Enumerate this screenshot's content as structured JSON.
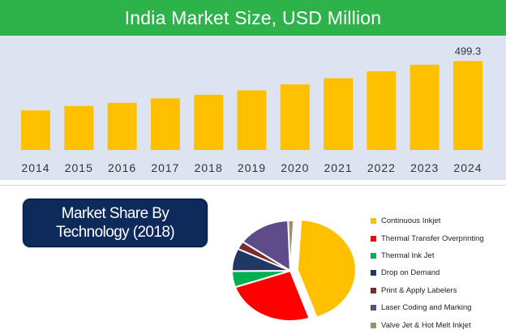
{
  "header": {
    "title": "India Market Size, USD Million"
  },
  "chart_data": [
    {
      "type": "bar",
      "title": "India Market Size, USD Million",
      "categories": [
        "2014",
        "2015",
        "2016",
        "2017",
        "2018",
        "2019",
        "2020",
        "2021",
        "2022",
        "2023",
        "2024"
      ],
      "values": [
        222,
        247,
        265,
        290,
        310,
        335,
        368,
        403,
        442,
        479,
        499.3
      ],
      "data_labels": {
        "2024": "499.3"
      },
      "color": "#ffc000",
      "ylim": [
        0,
        560
      ],
      "grid": false
    },
    {
      "type": "pie",
      "title": "Market Share By Technology (2018)",
      "title_lines": [
        "Market Share By",
        "Technology (2018)"
      ],
      "labels": [
        "Continuous Inkjet",
        "Thermal Transfer Overprinting",
        "Thermal Ink Jet",
        "Drop on Demand",
        "Print & Apply Labelers",
        "Laser Coding and Marking",
        "Valve Jet & Hot Melt Inkjet"
      ],
      "values": [
        42,
        24,
        5,
        7,
        2.5,
        14,
        1.5
      ],
      "colors": [
        "#ffc000",
        "#ff0000",
        "#00b050",
        "#1f3864",
        "#7b2c2c",
        "#5e4c8a",
        "#9c8f6a"
      ],
      "legend_position": "right",
      "exploded_slice": "Continuous Inkjet"
    }
  ]
}
